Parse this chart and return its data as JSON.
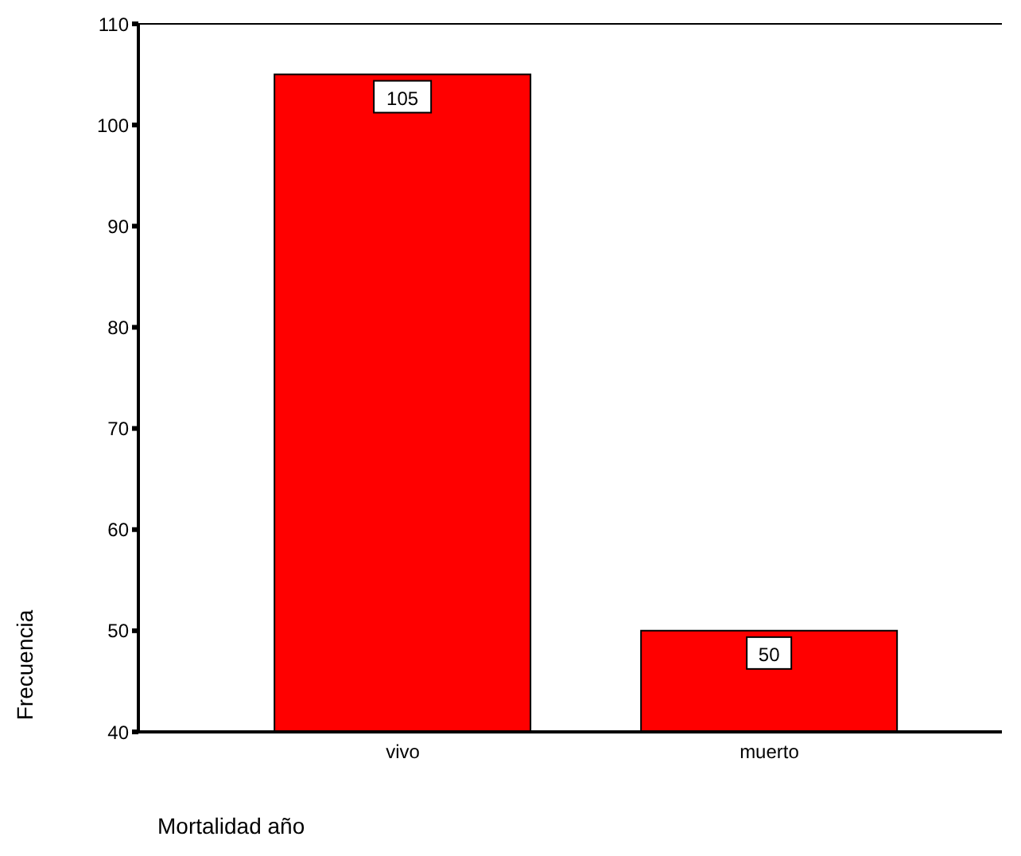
{
  "chart_data": {
    "type": "bar",
    "categories": [
      "vivo",
      "muerto"
    ],
    "values": [
      105,
      50
    ],
    "color": "#ff0000",
    "ylim": [
      40,
      110
    ],
    "yticks": [
      40,
      50,
      60,
      70,
      80,
      90,
      100,
      110
    ],
    "ylabel": "Frecuencia",
    "xlabel": "Mortalidad año",
    "data_labels": true,
    "grid": false
  }
}
